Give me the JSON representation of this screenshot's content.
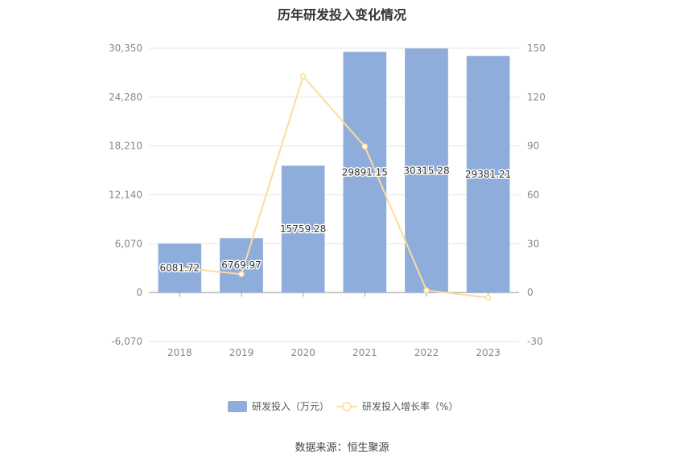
{
  "chart_data": {
    "type": "bar",
    "title": "历年研发投入变化情况",
    "categories": [
      "2018",
      "2019",
      "2020",
      "2021",
      "2022",
      "2023"
    ],
    "series": [
      {
        "name": "研发投入（万元）",
        "type": "bar",
        "axis": "left",
        "values": [
          6081.72,
          6769.97,
          15759.28,
          29891.15,
          30315.28,
          29381.21
        ],
        "labels": [
          "6081.72",
          "6769.97",
          "15759.28",
          "29891.15",
          "30315.28",
          "29381.21"
        ],
        "color": "#8eaddb"
      },
      {
        "name": "研发投入增长率（%）",
        "type": "line",
        "axis": "right",
        "values": [
          15.3,
          11.3,
          132.8,
          89.7,
          1.4,
          -3.1
        ],
        "color": "#fddc9d"
      }
    ],
    "left_axis": {
      "ylim": [
        -6070,
        30350
      ],
      "ticks": [
        "-6,070",
        "0",
        "6,070",
        "12,140",
        "18,210",
        "24,280",
        "30,350"
      ]
    },
    "right_axis": {
      "ylim": [
        -30,
        150
      ],
      "ticks": [
        "-30",
        "0",
        "30",
        "60",
        "90",
        "120",
        "150"
      ]
    },
    "grid": true,
    "legend_position": "bottom"
  },
  "footer": {
    "source": "数据来源：恒生聚源"
  }
}
